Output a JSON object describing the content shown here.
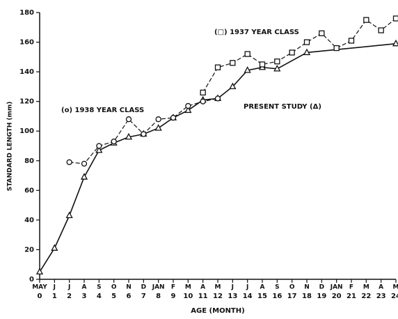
{
  "chart_data": {
    "type": "line",
    "xlabel": "AGE (MONTH)",
    "ylabel": "STANDARD LENGTH (mm)",
    "xlim": [
      0,
      24
    ],
    "ylim": [
      0,
      180
    ],
    "xticks": [
      0,
      1,
      2,
      3,
      4,
      5,
      6,
      7,
      8,
      9,
      10,
      11,
      12,
      13,
      14,
      15,
      16,
      17,
      18,
      19,
      20,
      21,
      22,
      23,
      24
    ],
    "categories": [
      "MAY",
      "J",
      "J",
      "A",
      "S",
      "O",
      "N",
      "D",
      "JAN",
      "F",
      "M",
      "A",
      "M",
      "J",
      "J",
      "A",
      "S",
      "O",
      "N",
      "D",
      "JAN",
      "F",
      "M",
      "A",
      "M"
    ],
    "yticks": [
      0,
      20,
      40,
      60,
      80,
      100,
      120,
      140,
      160,
      180
    ],
    "color": "#111111",
    "series": [
      {
        "name": "PRESENT STUDY (Δ)",
        "marker": "triangle",
        "dashed": false,
        "x": [
          0,
          1,
          2,
          3,
          4,
          5,
          6,
          7,
          8,
          9,
          10,
          11,
          12,
          13,
          14,
          15,
          16,
          18,
          24
        ],
        "values": [
          5,
          21,
          43,
          69,
          87,
          92,
          96,
          98,
          102,
          109,
          114,
          121,
          122,
          130,
          141,
          143,
          142,
          153,
          159
        ]
      },
      {
        "name": "(o) 1938 YEAR CLASS",
        "marker": "circle",
        "dashed": true,
        "x": [
          2,
          3,
          4,
          5,
          6,
          7,
          8,
          9,
          10,
          11,
          12
        ],
        "values": [
          79,
          78,
          90,
          93,
          108,
          98,
          108,
          109,
          117,
          120,
          122
        ]
      },
      {
        "name": "(□) 1937 YEAR CLASS",
        "marker": "square",
        "dashed": true,
        "x": [
          11,
          12,
          13,
          14,
          15,
          16,
          17,
          18,
          19,
          20,
          21,
          22,
          23,
          24
        ],
        "values": [
          126,
          143,
          146,
          152,
          145,
          147,
          153,
          160,
          166,
          156,
          161,
          175,
          168,
          176
        ]
      }
    ]
  }
}
